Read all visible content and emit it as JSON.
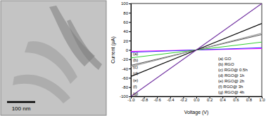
{
  "image": {
    "scale_bar": "100 nm"
  },
  "chart_data": {
    "type": "line",
    "x_label": "Voltage (V)",
    "y_label": "Current (µA)",
    "x": [
      -1,
      0,
      1
    ],
    "xlim": [
      -1,
      1
    ],
    "xticks": [
      {
        "value": -1,
        "label": "-1.0"
      },
      -0.8,
      -0.6,
      -0.4,
      -0.2,
      {
        "value": 0,
        "label": "0.0"
      },
      0.2,
      0.4,
      0.6,
      0.8,
      {
        "value": 1,
        "label": "1.0"
      }
    ],
    "ylim": [
      -100,
      100
    ],
    "yticks": [
      -100,
      -80,
      -60,
      -40,
      -20,
      0,
      20,
      40,
      60,
      80,
      100
    ],
    "legend": "lower right",
    "series": [
      {
        "name": "(a) GO",
        "tag": "(a)",
        "color": "#ff00ff",
        "values": [
          -3,
          0,
          3
        ]
      },
      {
        "name": "(b) RGO",
        "tag": "(b)",
        "color": "#3333ff",
        "values": [
          -5,
          0,
          5
        ]
      },
      {
        "name": "(c) RGO@ 0.5h",
        "tag": "(c)",
        "color": "#33cc33",
        "values": [
          -17,
          0,
          17
        ]
      },
      {
        "name": "(d) RGO@ 1h",
        "tag": "(d)",
        "color": "#555555",
        "values": [
          -33,
          0,
          33
        ]
      },
      {
        "name": "(e) RGO@ 2h",
        "tag": "(e)",
        "color": "#999999",
        "values": [
          -36,
          0,
          36
        ]
      },
      {
        "name": "(f) RGO@ 3h",
        "tag": "(f)",
        "color": "#000000",
        "values": [
          -57,
          0,
          57
        ]
      },
      {
        "name": "(g) RGO@ 4h",
        "tag": "(g)",
        "color": "#7030a0",
        "values": [
          -100,
          0,
          100
        ]
      }
    ]
  }
}
